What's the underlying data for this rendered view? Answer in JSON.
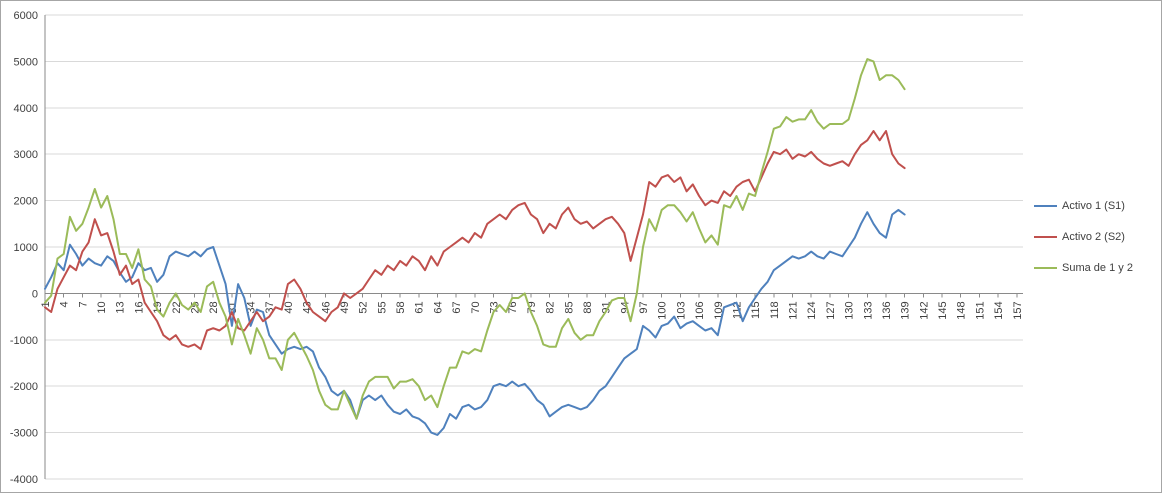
{
  "chart_data": {
    "type": "line",
    "title": "",
    "xlabel": "",
    "ylabel": "",
    "grid": "horizontal",
    "legend_position": "right",
    "y_axis": {
      "min": -4000,
      "max": 6000,
      "step": 1000,
      "tick_labels": [
        "6000",
        "5000",
        "4000",
        "3000",
        "2000",
        "1000",
        "0",
        "-1000",
        "-2000",
        "-3000",
        "-4000"
      ]
    },
    "x_axis": {
      "axis_max": 158,
      "tick_labels": [
        "1",
        "4",
        "7",
        "10",
        "13",
        "16",
        "19",
        "22",
        "25",
        "28",
        "31",
        "34",
        "37",
        "40",
        "43",
        "46",
        "49",
        "52",
        "55",
        "58",
        "61",
        "64",
        "67",
        "70",
        "73",
        "76",
        "79",
        "82",
        "85",
        "88",
        "91",
        "94",
        "97",
        "100",
        "103",
        "106",
        "109",
        "112",
        "115",
        "118",
        "121",
        "124",
        "127",
        "130",
        "133",
        "136",
        "139",
        "142",
        "145",
        "148",
        "151",
        "154",
        "157"
      ]
    },
    "series": [
      {
        "name": "Activo 1 (S1)",
        "color": "#4F81BD",
        "values": [
          100,
          350,
          650,
          500,
          1050,
          850,
          600,
          750,
          650,
          600,
          800,
          700,
          450,
          250,
          350,
          650,
          500,
          550,
          250,
          400,
          800,
          900,
          850,
          800,
          900,
          800,
          950,
          1000,
          600,
          200,
          -700,
          200,
          -100,
          -700,
          -350,
          -400,
          -900,
          -1100,
          -1300,
          -1200,
          -1150,
          -1200,
          -1150,
          -1250,
          -1600,
          -1800,
          -2100,
          -2200,
          -2100,
          -2300,
          -2700,
          -2300,
          -2200,
          -2300,
          -2200,
          -2400,
          -2550,
          -2600,
          -2500,
          -2650,
          -2700,
          -2800,
          -3000,
          -3050,
          -2900,
          -2600,
          -2700,
          -2450,
          -2400,
          -2500,
          -2450,
          -2300,
          -2000,
          -1950,
          -2000,
          -1900,
          -2000,
          -1950,
          -2100,
          -2300,
          -2400,
          -2650,
          -2550,
          -2450,
          -2400,
          -2450,
          -2500,
          -2450,
          -2300,
          -2100,
          -2000,
          -1800,
          -1600,
          -1400,
          -1300,
          -1200,
          -700,
          -800,
          -950,
          -700,
          -650,
          -500,
          -750,
          -650,
          -600,
          -700,
          -800,
          -750,
          -900,
          -300,
          -250,
          -200,
          -600,
          -300,
          -100,
          100,
          250,
          500,
          600,
          700,
          800,
          750,
          800,
          900,
          800,
          750,
          900,
          850,
          800,
          1000,
          1200,
          1500,
          1750,
          1500,
          1300,
          1200,
          1700,
          1800,
          1700
        ]
      },
      {
        "name": "Activo 2 (S2)",
        "color": "#C0504D",
        "values": [
          -300,
          -400,
          100,
          350,
          600,
          500,
          900,
          1100,
          1600,
          1250,
          1300,
          900,
          400,
          600,
          200,
          300,
          -200,
          -400,
          -600,
          -900,
          -1000,
          -900,
          -1100,
          -1150,
          -1100,
          -1200,
          -800,
          -750,
          -800,
          -700,
          -400,
          -750,
          -800,
          -600,
          -400,
          -600,
          -500,
          -300,
          -350,
          200,
          300,
          100,
          -200,
          -400,
          -500,
          -600,
          -400,
          -300,
          0,
          -100,
          0,
          100,
          300,
          500,
          400,
          600,
          500,
          700,
          600,
          800,
          700,
          500,
          800,
          600,
          900,
          1000,
          1100,
          1200,
          1100,
          1300,
          1200,
          1500,
          1600,
          1700,
          1600,
          1800,
          1900,
          1950,
          1700,
          1600,
          1300,
          1500,
          1400,
          1700,
          1850,
          1600,
          1500,
          1550,
          1400,
          1500,
          1600,
          1650,
          1500,
          1300,
          700,
          1200,
          1700,
          2400,
          2300,
          2500,
          2550,
          2400,
          2500,
          2200,
          2350,
          2100,
          1900,
          2000,
          1950,
          2200,
          2100,
          2300,
          2400,
          2450,
          2200,
          2500,
          2800,
          3050,
          3000,
          3100,
          2900,
          3000,
          2950,
          3050,
          2900,
          2800,
          2750,
          2800,
          2850,
          2750,
          3000,
          3200,
          3300,
          3500,
          3300,
          3500,
          3000,
          2800,
          2700
        ]
      },
      {
        "name": "Suma de 1 y 2",
        "color": "#9BBB59",
        "values": [
          -200,
          -50,
          750,
          850,
          1650,
          1350,
          1500,
          1850,
          2250,
          1850,
          2100,
          1600,
          850,
          850,
          550,
          950,
          300,
          150,
          -350,
          -500,
          -200,
          0,
          -250,
          -350,
          -200,
          -400,
          150,
          250,
          -200,
          -500,
          -1100,
          -550,
          -900,
          -1300,
          -750,
          -1000,
          -1400,
          -1400,
          -1650,
          -1000,
          -850,
          -1100,
          -1350,
          -1650,
          -2100,
          -2400,
          -2500,
          -2500,
          -2100,
          -2400,
          -2700,
          -2200,
          -1900,
          -1800,
          -1800,
          -1800,
          -2050,
          -1900,
          -1900,
          -1850,
          -2000,
          -2300,
          -2200,
          -2450,
          -2000,
          -1600,
          -1600,
          -1250,
          -1300,
          -1200,
          -1250,
          -800,
          -400,
          -250,
          -400,
          -100,
          -100,
          0,
          -400,
          -700,
          -1100,
          -1150,
          -1150,
          -750,
          -550,
          -850,
          -1000,
          -900,
          -900,
          -600,
          -400,
          -150,
          -100,
          -100,
          -600,
          0,
          1000,
          1600,
          1350,
          1800,
          1900,
          1900,
          1750,
          1550,
          1750,
          1400,
          1100,
          1250,
          1050,
          1900,
          1850,
          2100,
          1800,
          2150,
          2100,
          2600,
          3050,
          3550,
          3600,
          3800,
          3700,
          3750,
          3750,
          3950,
          3700,
          3550,
          3650,
          3650,
          3650,
          3750,
          4200,
          4700,
          5050,
          5000,
          4600,
          4700,
          4700,
          4600,
          4400
        ]
      }
    ],
    "colors": {
      "gridline": "#D9D9D9",
      "axis_line": "#8A8A8A",
      "tick_text": "#3F3F3F"
    }
  }
}
